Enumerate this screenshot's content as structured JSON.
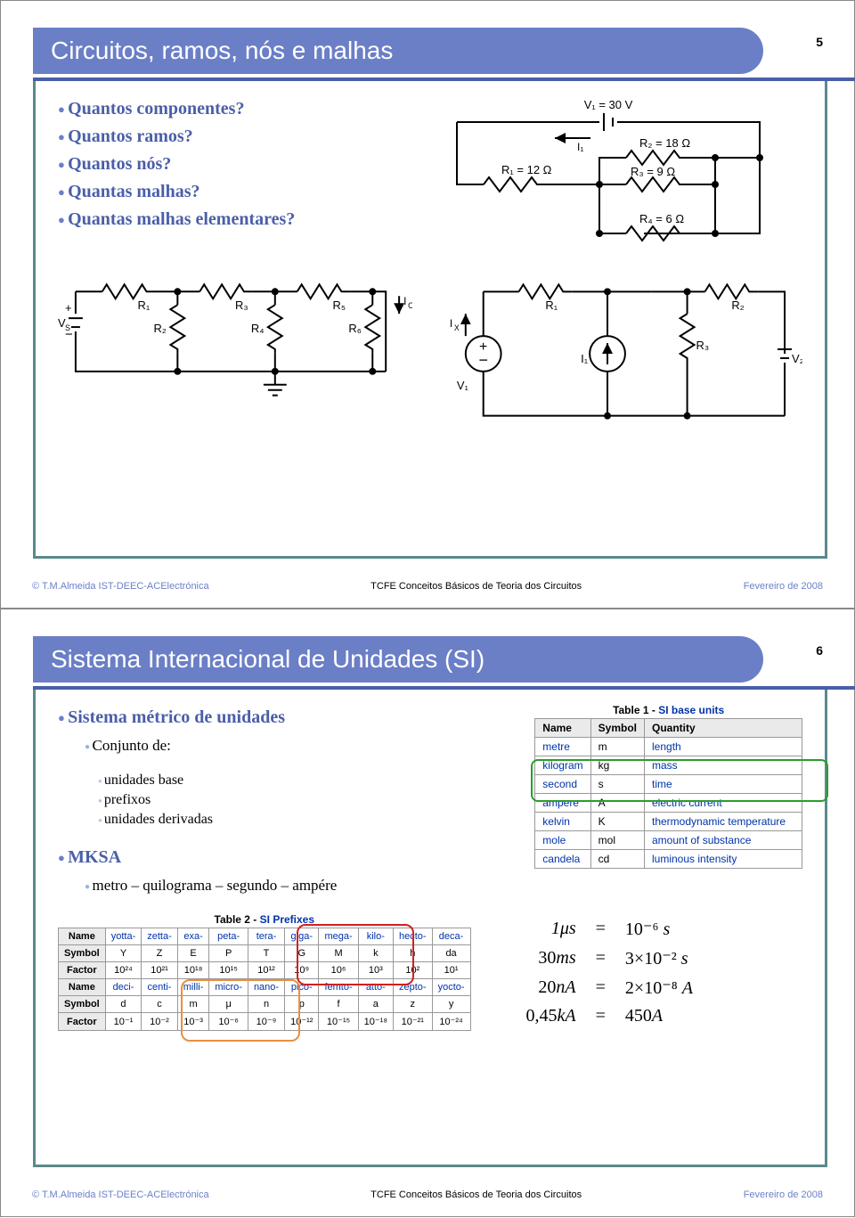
{
  "slide1": {
    "title": "Circuitos, ramos, nós e malhas",
    "page_num": "5",
    "questions": [
      "Quantos componentes?",
      "Quantos ramos?",
      "Quantos nós?",
      "Quantas malhas?",
      "Quantas malhas elementares?"
    ],
    "circuit_top_right": {
      "V1": "V₁ = 30 V",
      "I1": "I₁",
      "R1": "R₁ = 12 Ω",
      "R2": "R₂ = 18 Ω",
      "R3": "R₃ = 9 Ω",
      "R4": "R₄ = 6 Ω"
    },
    "circuit_bottom_left": {
      "labels": [
        "V_S",
        "R₁",
        "R₂",
        "R₃",
        "R₄",
        "R₅",
        "R₆",
        "I_O",
        "I_X"
      ]
    },
    "circuit_bottom_right": {
      "labels": [
        "V₁",
        "I₁",
        "R₁",
        "R₂",
        "R₃",
        "V₂"
      ]
    },
    "footer_left": "© T.M.Almeida   IST-DEEC-ACElectrónica",
    "footer_center": "TCFE  Conceitos Básicos de Teoria dos Circuitos",
    "footer_right": "Fevereiro de 2008",
    "colors": {
      "accent": "#6b7fc7",
      "accent_dark": "#4a5fa8",
      "frame": "#5a8a8a"
    }
  },
  "slide2": {
    "title": "Sistema Internacional de Unidades (SI)",
    "page_num": "6",
    "heading1": "Sistema métrico de unidades",
    "sub1": "Conjunto de:",
    "sub1_items": [
      "unidades base",
      "prefixos",
      "unidades derivadas"
    ],
    "heading2": "MKSA",
    "sub2": "metro – quilograma – segundo – ampére",
    "table1_caption_a": "Table 1 - ",
    "table1_caption_b": "SI base units",
    "table1": {
      "headers": [
        "Name",
        "Symbol",
        "Quantity"
      ],
      "rows": [
        [
          "metre",
          "m",
          "length"
        ],
        [
          "kilogram",
          "kg",
          "mass"
        ],
        [
          "second",
          "s",
          "time"
        ],
        [
          "ampere",
          "A",
          "electric current"
        ],
        [
          "kelvin",
          "K",
          "thermodynamic temperature"
        ],
        [
          "mole",
          "mol",
          "amount of substance"
        ],
        [
          "candela",
          "cd",
          "luminous intensity"
        ]
      ],
      "highlight_rows": [
        2,
        3
      ],
      "highlight_color": "#2a9d2a"
    },
    "table2_caption_a": "Table 2 - ",
    "table2_caption_b": "SI Prefixes",
    "table2": {
      "row_labels": [
        "Name",
        "Symbol",
        "Factor",
        "Name",
        "Symbol",
        "Factor"
      ],
      "cols_top": {
        "names": [
          "yotta-",
          "zetta-",
          "exa-",
          "peta-",
          "tera-",
          "giga-",
          "mega-",
          "kilo-",
          "hecto-",
          "deca-"
        ],
        "symbols": [
          "Y",
          "Z",
          "E",
          "P",
          "T",
          "G",
          "M",
          "k",
          "h",
          "da"
        ],
        "factors": [
          "10²⁴",
          "10²¹",
          "10¹⁸",
          "10¹⁵",
          "10¹²",
          "10⁹",
          "10⁶",
          "10³",
          "10²",
          "10¹"
        ]
      },
      "cols_bot": {
        "names": [
          "deci-",
          "centi-",
          "milli-",
          "micro-",
          "nano-",
          "pico-",
          "femto-",
          "atto-",
          "zepto-",
          "yocto-"
        ],
        "symbols": [
          "d",
          "c",
          "m",
          "μ",
          "n",
          "p",
          "f",
          "a",
          "z",
          "y"
        ],
        "factors": [
          "10⁻¹",
          "10⁻²",
          "10⁻³",
          "10⁻⁶",
          "10⁻⁹",
          "10⁻¹²",
          "10⁻¹⁵",
          "10⁻¹⁸",
          "10⁻²¹",
          "10⁻²⁴"
        ]
      },
      "red_box_cols": [
        5,
        6,
        7
      ],
      "orange_box_cols": [
        2,
        3,
        4
      ],
      "red_color": "#d02020",
      "orange_color": "#e89040"
    },
    "equations": [
      [
        "1μs",
        "=",
        "10⁻⁶ s"
      ],
      [
        "30ms",
        "=",
        "3×10⁻² s"
      ],
      [
        "20nA",
        "=",
        "2×10⁻⁸ A"
      ],
      [
        "0,45kA",
        "=",
        "450A"
      ]
    ],
    "footer_left": "© T.M.Almeida   IST-DEEC-ACElectrónica",
    "footer_center": "TCFE  Conceitos Básicos de Teoria dos Circuitos",
    "footer_right": "Fevereiro de 2008"
  }
}
